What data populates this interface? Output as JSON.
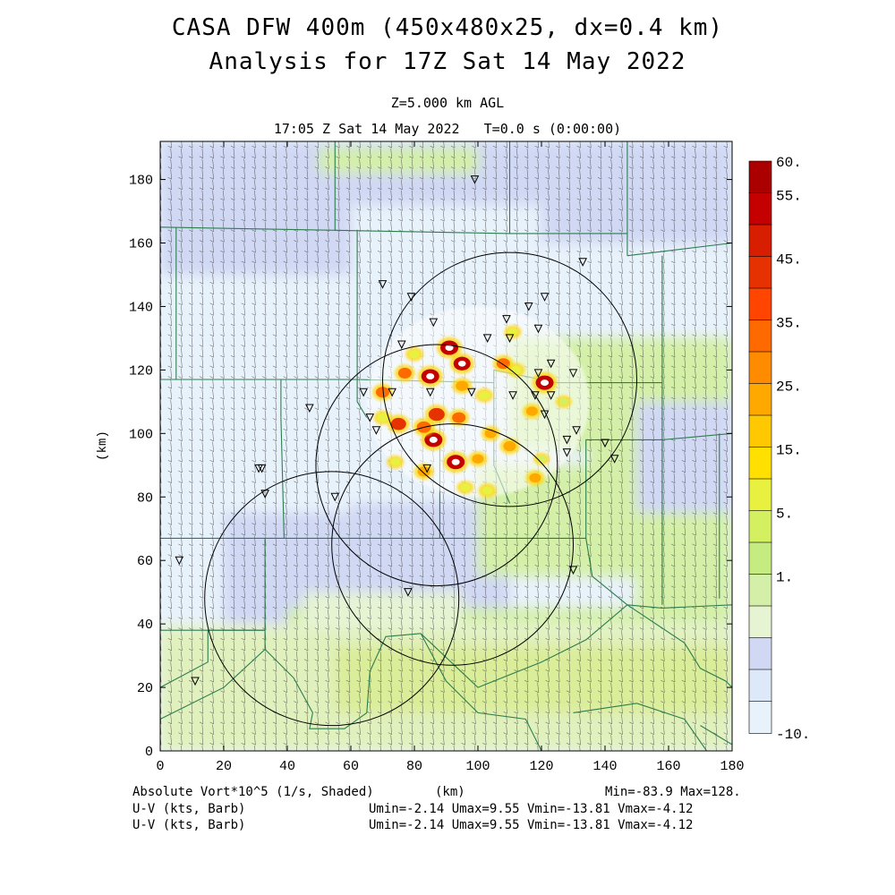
{
  "header": {
    "title_line1": "CASA DFW 400m (450x480x25, dx=0.4 km)",
    "title_line2": "Analysis for 17Z Sat 14 May 2022",
    "level": "Z=5.000 km AGL",
    "valid_time": "17:05 Z Sat 14 May 2022   T=0.0 s (0:00:00)"
  },
  "footer": {
    "field_label": "Absolute Vort*10^5 (1/s, Shaded)",
    "x_unit": "(km)",
    "minmax": "Min=-83.9 Max=128.",
    "wind_label_1": "U-V (kts, Barb)",
    "wind_stats_1": "Umin=-2.14 Umax=9.55 Vmin=-13.81 Vmax=-4.12",
    "wind_label_2": "U-V (kts, Barb)",
    "wind_stats_2": "Umin=-2.14 Umax=9.55 Vmin=-13.81 Vmax=-4.12"
  },
  "colors": {
    "county_lines": "#2e7d4f",
    "radar_rings": "#000000",
    "barbs": "#000000"
  },
  "chart_data": {
    "type": "heatmap",
    "xlabel": "",
    "ylabel": "(km)",
    "xlim": [
      0,
      180
    ],
    "ylim": [
      0,
      192
    ],
    "xticks": [
      0,
      20,
      40,
      60,
      80,
      100,
      120,
      140,
      160,
      180
    ],
    "yticks": [
      0,
      20,
      40,
      60,
      80,
      100,
      120,
      140,
      160,
      180
    ],
    "colorbar": {
      "labels": [
        "60.",
        "55.",
        "45.",
        "35.",
        "25.",
        "15.",
        "5.",
        "1.",
        "-10."
      ],
      "colors": [
        "#aa0000",
        "#c40000",
        "#d81e00",
        "#e63200",
        "#ff4500",
        "#ff6a00",
        "#ff8c00",
        "#ffa800",
        "#ffc800",
        "#ffe000",
        "#e8f040",
        "#d4f060",
        "#c4ec80",
        "#d4f0a8",
        "#e6f4d4",
        "#d0d8f4",
        "#dde8f8",
        "#e8f2fb"
      ]
    },
    "radar_rings": [
      {
        "cx": 110,
        "cy": 117,
        "r": 40
      },
      {
        "cx": 87,
        "cy": 90,
        "r": 38
      },
      {
        "cx": 92,
        "cy": 65,
        "r": 38
      },
      {
        "cx": 54,
        "cy": 48,
        "r": 40
      }
    ],
    "vorticity_maxima": [
      {
        "x": 85,
        "y": 118,
        "v": 60
      },
      {
        "x": 91,
        "y": 127,
        "v": 60
      },
      {
        "x": 95,
        "y": 122,
        "v": 55
      },
      {
        "x": 87,
        "y": 106,
        "v": 50
      },
      {
        "x": 86,
        "y": 98,
        "v": 60
      },
      {
        "x": 93,
        "y": 91,
        "v": 60
      },
      {
        "x": 121,
        "y": 116,
        "v": 60
      },
      {
        "x": 75,
        "y": 103,
        "v": 45
      },
      {
        "x": 83,
        "y": 102,
        "v": 40
      },
      {
        "x": 94,
        "y": 105,
        "v": 35
      },
      {
        "x": 108,
        "y": 122,
        "v": 35
      },
      {
        "x": 77,
        "y": 119,
        "v": 35
      },
      {
        "x": 70,
        "y": 113,
        "v": 35
      },
      {
        "x": 83,
        "y": 88,
        "v": 30
      },
      {
        "x": 100,
        "y": 92,
        "v": 25
      },
      {
        "x": 110,
        "y": 96,
        "v": 30
      },
      {
        "x": 104,
        "y": 100,
        "v": 25
      },
      {
        "x": 117,
        "y": 107,
        "v": 25
      },
      {
        "x": 102,
        "y": 112,
        "v": 20
      },
      {
        "x": 118,
        "y": 86,
        "v": 25
      },
      {
        "x": 103,
        "y": 82,
        "v": 20
      },
      {
        "x": 74,
        "y": 91,
        "v": 15
      },
      {
        "x": 80,
        "y": 125,
        "v": 20
      },
      {
        "x": 111,
        "y": 132,
        "v": 15
      },
      {
        "x": 127,
        "y": 110,
        "v": 10
      },
      {
        "x": 96,
        "y": 83,
        "v": 15
      },
      {
        "x": 70,
        "y": 105,
        "v": 20
      },
      {
        "x": 120,
        "y": 92,
        "v": 10
      },
      {
        "x": 112,
        "y": 120,
        "v": 20
      },
      {
        "x": 95,
        "y": 115,
        "v": 30
      }
    ],
    "stations": [
      [
        99,
        180
      ],
      [
        133,
        154
      ],
      [
        70,
        147
      ],
      [
        79,
        143
      ],
      [
        109,
        136
      ],
      [
        121,
        143
      ],
      [
        116,
        140
      ],
      [
        119,
        133
      ],
      [
        110,
        130
      ],
      [
        103,
        130
      ],
      [
        86,
        135
      ],
      [
        76,
        128
      ],
      [
        64,
        113
      ],
      [
        73,
        113
      ],
      [
        85,
        113
      ],
      [
        98,
        113
      ],
      [
        111,
        112
      ],
      [
        118,
        112
      ],
      [
        123,
        112
      ],
      [
        130,
        119
      ],
      [
        119,
        119
      ],
      [
        123,
        122
      ],
      [
        121,
        106
      ],
      [
        128,
        98
      ],
      [
        131,
        101
      ],
      [
        128,
        94
      ],
      [
        140,
        97
      ],
      [
        143,
        92
      ],
      [
        47,
        108
      ],
      [
        31,
        89
      ],
      [
        32,
        89
      ],
      [
        33,
        81
      ],
      [
        55,
        80
      ],
      [
        84,
        89
      ],
      [
        78,
        50
      ],
      [
        130,
        57
      ],
      [
        6,
        60
      ],
      [
        11,
        22
      ],
      [
        66,
        105
      ],
      [
        68,
        101
      ]
    ]
  }
}
